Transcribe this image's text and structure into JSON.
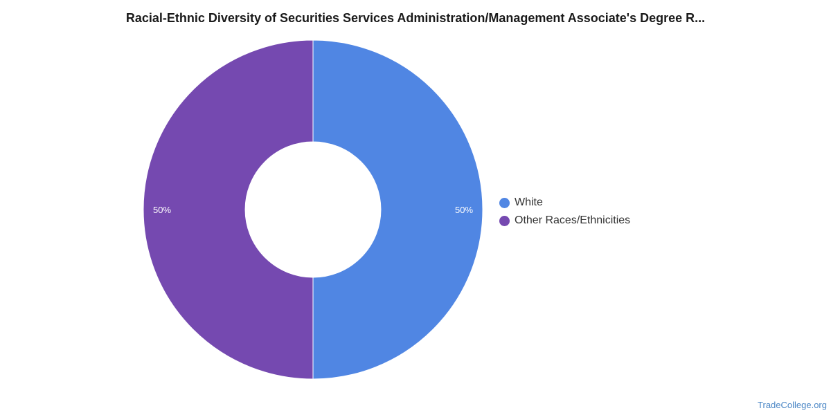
{
  "chart_data": {
    "type": "pie",
    "style": "donut",
    "title": "Racial-Ethnic Diversity of Securities Services Administration/Management Associate's Degree R...",
    "slices": [
      {
        "label": "White",
        "value": 50,
        "display": "50%",
        "color": "#5086e3"
      },
      {
        "label": "Other Races/Ethnicities",
        "value": 50,
        "display": "50%",
        "color": "#7549b0"
      }
    ],
    "legend_position": "right"
  },
  "source": "TradeCollege.org"
}
